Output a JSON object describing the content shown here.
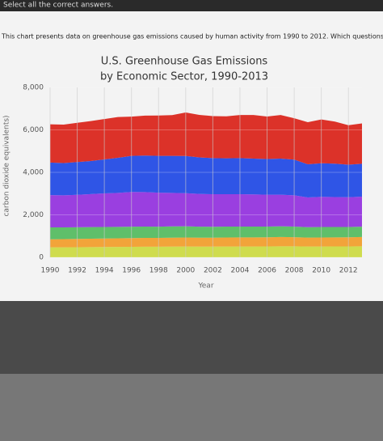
{
  "header": {
    "instruction": "Select all the correct answers.",
    "prompt": "This chart presents data on greenhouse gas emissions caused by human activity from 1990 to 2012. Which questions"
  },
  "chart_data": {
    "type": "stacked-area",
    "title": "U.S. Greenhouse Gas Emissions",
    "subtitle": "by Economic Sector, 1990-2013",
    "x_label": "Year",
    "y_label": "carbon dioxide equivalents)",
    "x": [
      1990,
      1991,
      1992,
      1993,
      1994,
      1995,
      1996,
      1997,
      1998,
      1999,
      2000,
      2001,
      2002,
      2003,
      2004,
      2005,
      2006,
      2007,
      2008,
      2009,
      2010,
      2011,
      2012,
      2013
    ],
    "xlim": [
      1990,
      2013
    ],
    "xticks": [
      1990,
      1992,
      1994,
      1996,
      1998,
      2000,
      2002,
      2004,
      2006,
      2008,
      2010,
      2012
    ],
    "ylim": [
      0,
      8000
    ],
    "yticks": [
      0,
      {
        "value": 2000,
        "label": "2,000"
      },
      {
        "value": 4000,
        "label": "4,000"
      },
      {
        "value": 6000,
        "label": "6,000"
      },
      {
        "value": 8000,
        "label": "8,000"
      }
    ],
    "grid": true,
    "series": [
      {
        "color": "#cfdc4e",
        "values": [
          470,
          470,
          475,
          480,
          485,
          490,
          495,
          500,
          500,
          505,
          510,
          505,
          505,
          510,
          510,
          510,
          515,
          520,
          520,
          510,
          510,
          515,
          515,
          520
        ]
      },
      {
        "color": "#f2a43a",
        "values": [
          380,
          385,
          390,
          395,
          400,
          405,
          410,
          415,
          415,
          420,
          425,
          420,
          420,
          425,
          430,
          430,
          430,
          435,
          430,
          420,
          425,
          425,
          430,
          435
        ]
      },
      {
        "color": "#5fbf6a",
        "values": [
          560,
          555,
          550,
          550,
          545,
          540,
          540,
          535,
          530,
          530,
          525,
          520,
          515,
          515,
          510,
          510,
          505,
          505,
          500,
          490,
          495,
          490,
          485,
          490
        ]
      },
      {
        "color": "#9a3fe0",
        "values": [
          1520,
          1510,
          1530,
          1550,
          1580,
          1600,
          1630,
          1620,
          1600,
          1580,
          1560,
          1540,
          1530,
          1520,
          1520,
          1510,
          1500,
          1490,
          1470,
          1400,
          1420,
          1410,
          1400,
          1410
        ]
      },
      {
        "color": "#2f55e6",
        "values": [
          1530,
          1520,
          1540,
          1560,
          1600,
          1650,
          1700,
          1720,
          1730,
          1740,
          1750,
          1720,
          1700,
          1690,
          1700,
          1690,
          1680,
          1700,
          1680,
          1560,
          1580,
          1570,
          1530,
          1550
        ]
      },
      {
        "color": "#dc3229",
        "values": [
          1800,
          1810,
          1850,
          1880,
          1900,
          1920,
          1850,
          1880,
          1900,
          1920,
          2050,
          2000,
          1980,
          1980,
          2030,
          2050,
          2000,
          2050,
          1950,
          1980,
          2060,
          1980,
          1860,
          1900
        ]
      }
    ]
  }
}
